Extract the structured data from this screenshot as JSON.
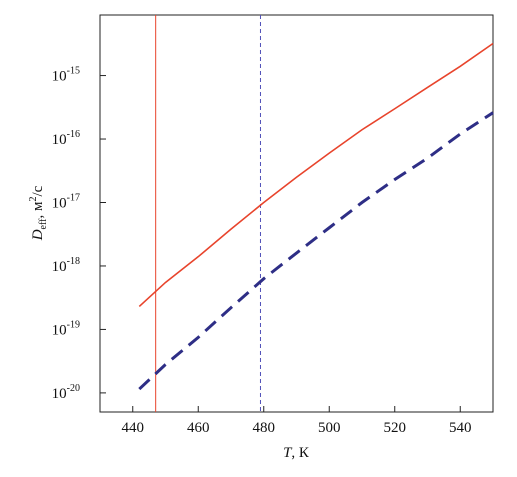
{
  "chart_data": {
    "type": "line",
    "xlabel": {
      "symbol": "T",
      "rest": ", К"
    },
    "ylabel": {
      "symbol": "D",
      "subscript": "eff",
      "unit": ", м",
      "unit_exponent": "2",
      "unit_rest": "/с"
    },
    "x": [
      442,
      450,
      460,
      470,
      480,
      490,
      500,
      510,
      520,
      530,
      540,
      550
    ],
    "series": [
      {
        "color": "#e8442c",
        "dashed": false,
        "values": [
          2.3e-19,
          5.5e-19,
          1.4e-18,
          3.8e-18,
          1e-17,
          2.5e-17,
          6e-17,
          1.4e-16,
          3e-16,
          6.5e-16,
          1.4e-15,
          3.2e-15
        ]
      },
      {
        "color": "#2e2e86",
        "dashed": true,
        "values": [
          1.15e-20,
          2.8e-20,
          7.5e-20,
          2.2e-19,
          6.3e-19,
          1.6e-18,
          4e-18,
          1e-17,
          2.3e-17,
          5e-17,
          1.2e-16,
          2.6e-16
        ]
      }
    ],
    "vlines": [
      {
        "x": 447,
        "color": "#e8442c",
        "dashed": false
      },
      {
        "x": 479,
        "color": "#5050b8",
        "dashed": true
      }
    ],
    "xlim": [
      430,
      550
    ],
    "xticks": [
      440,
      460,
      480,
      500,
      520,
      540
    ],
    "ylim": [
      5e-21,
      9e-15
    ],
    "log_y": true,
    "yticks": [
      {
        "value": 1e-20,
        "label": "10",
        "exponent": "-20"
      },
      {
        "value": 1e-19,
        "label": "10",
        "exponent": "-19"
      },
      {
        "value": 1e-18,
        "label": "10",
        "exponent": "-18"
      },
      {
        "value": 1e-17,
        "label": "10",
        "exponent": "-17"
      },
      {
        "value": 1e-16,
        "label": "10",
        "exponent": "-16"
      },
      {
        "value": 1e-15,
        "label": "10",
        "exponent": "-15"
      }
    ]
  }
}
